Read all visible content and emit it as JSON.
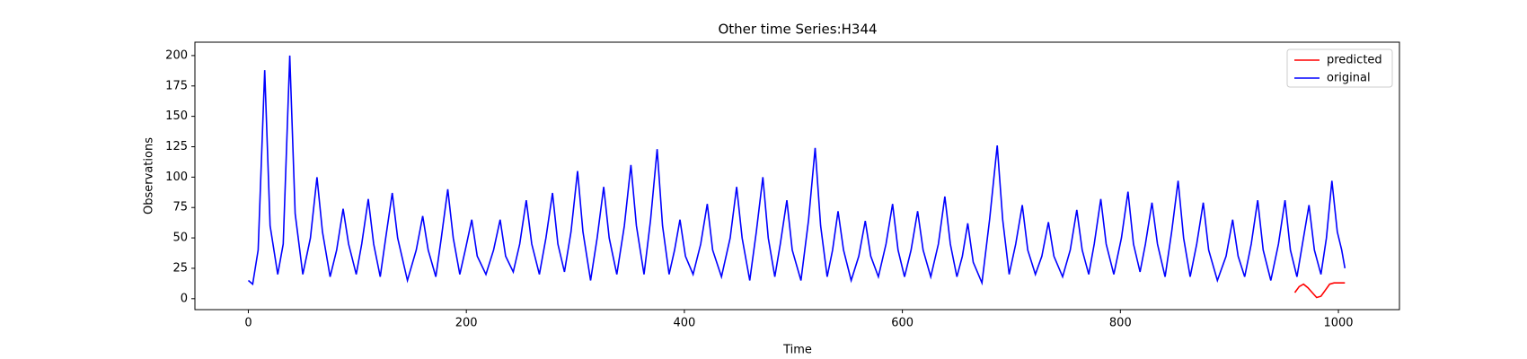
{
  "chart_data": {
    "type": "line",
    "title": "Other time Series:H344",
    "x_label": "Time",
    "y_label": "Observations",
    "xlim": [
      -49,
      1056
    ],
    "xticks": [
      0,
      200,
      400,
      600,
      800,
      1000
    ],
    "ylim": [
      -9,
      211
    ],
    "yticks": [
      0,
      25,
      50,
      75,
      100,
      125,
      150,
      175,
      200
    ],
    "legend": "upper right",
    "series": [
      {
        "name": "predicted",
        "color": "#ff0000",
        "x": [
          960,
          964,
          968,
          972,
          976,
          980,
          984,
          988,
          992,
          996,
          1000,
          1003,
          1006
        ],
        "values": [
          5,
          10,
          12,
          9,
          5,
          1,
          2,
          7,
          12,
          13,
          13,
          13,
          13
        ]
      },
      {
        "name": "original",
        "color": "#0000ff",
        "x": [
          0,
          4,
          9,
          15,
          20,
          27,
          32,
          38,
          43,
          50,
          57,
          63,
          68,
          75,
          81,
          87,
          92,
          99,
          104,
          110,
          115,
          121,
          126,
          132,
          137,
          146,
          154,
          160,
          165,
          172,
          177,
          183,
          188,
          194,
          199,
          205,
          210,
          218,
          225,
          231,
          236,
          243,
          249,
          255,
          260,
          267,
          273,
          279,
          284,
          290,
          296,
          302,
          307,
          314,
          320,
          326,
          331,
          338,
          345,
          351,
          356,
          363,
          369,
          375,
          380,
          386,
          391,
          396,
          401,
          408,
          415,
          421,
          426,
          434,
          442,
          448,
          453,
          460,
          466,
          472,
          477,
          483,
          488,
          494,
          499,
          507,
          514,
          520,
          525,
          531,
          536,
          541,
          546,
          553,
          560,
          566,
          571,
          578,
          585,
          591,
          596,
          602,
          608,
          614,
          619,
          626,
          633,
          639,
          644,
          650,
          655,
          660,
          665,
          673,
          680,
          687,
          692,
          698,
          704,
          710,
          715,
          722,
          728,
          734,
          739,
          747,
          754,
          760,
          765,
          771,
          776,
          782,
          787,
          794,
          801,
          807,
          812,
          818,
          823,
          829,
          834,
          841,
          847,
          853,
          858,
          864,
          870,
          876,
          881,
          889,
          897,
          903,
          908,
          914,
          920,
          926,
          931,
          938,
          945,
          951,
          956,
          962,
          967,
          973,
          978,
          984,
          989,
          994,
          999,
          1003,
          1006
        ],
        "values": [
          15,
          12,
          40,
          188,
          60,
          20,
          45,
          200,
          70,
          20,
          50,
          100,
          55,
          18,
          40,
          74,
          45,
          20,
          45,
          82,
          45,
          18,
          50,
          87,
          50,
          15,
          40,
          68,
          40,
          18,
          50,
          90,
          50,
          20,
          40,
          65,
          35,
          20,
          40,
          65,
          35,
          22,
          45,
          81,
          45,
          20,
          50,
          87,
          45,
          22,
          55,
          105,
          55,
          15,
          50,
          92,
          50,
          20,
          60,
          110,
          60,
          20,
          65,
          123,
          60,
          20,
          40,
          65,
          35,
          20,
          45,
          78,
          40,
          18,
          50,
          92,
          50,
          15,
          55,
          100,
          50,
          18,
          45,
          81,
          40,
          15,
          65,
          124,
          60,
          18,
          40,
          72,
          40,
          15,
          35,
          64,
          35,
          18,
          45,
          78,
          40,
          18,
          40,
          72,
          40,
          18,
          45,
          84,
          45,
          18,
          35,
          62,
          30,
          13,
          65,
          126,
          65,
          20,
          45,
          77,
          40,
          20,
          35,
          63,
          35,
          18,
          40,
          73,
          40,
          20,
          45,
          82,
          45,
          20,
          50,
          88,
          45,
          22,
          45,
          79,
          45,
          18,
          55,
          97,
          50,
          18,
          45,
          79,
          40,
          15,
          35,
          65,
          35,
          18,
          45,
          81,
          40,
          15,
          45,
          81,
          40,
          18,
          45,
          77,
          40,
          20,
          50,
          97,
          55,
          40,
          25
        ]
      }
    ]
  }
}
